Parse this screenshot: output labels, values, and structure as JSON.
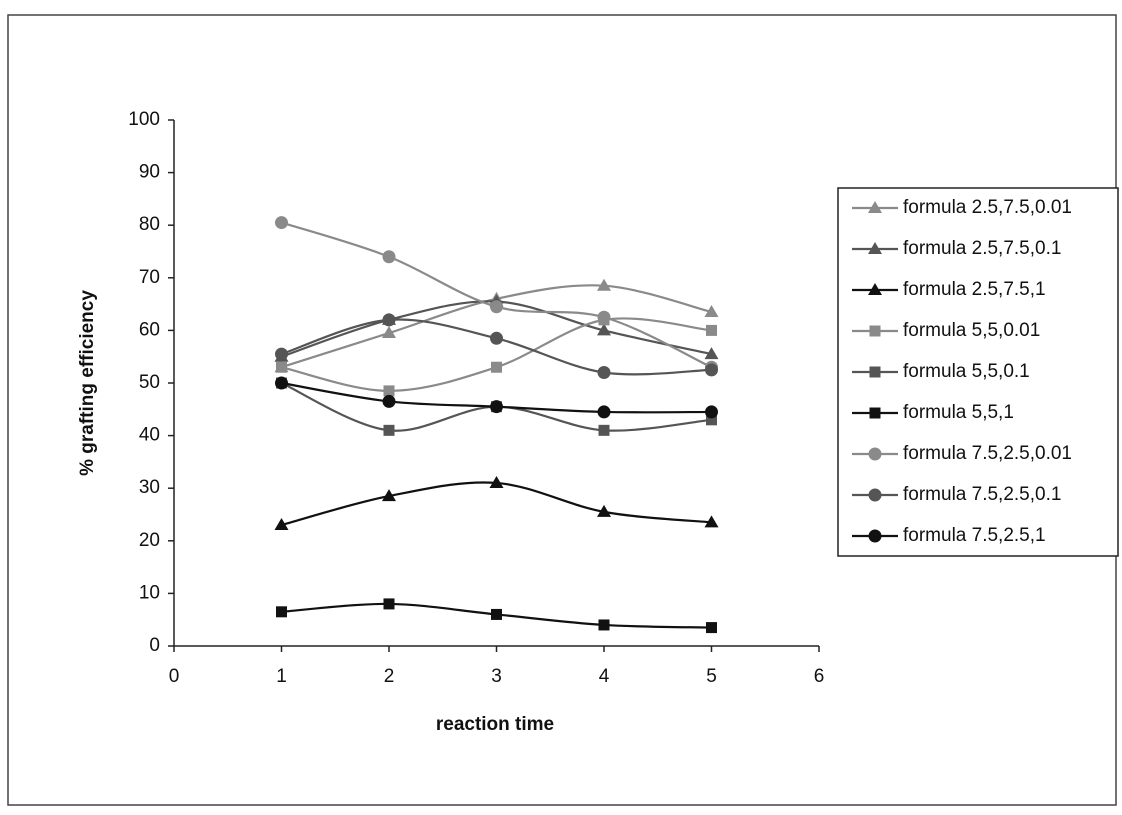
{
  "chart_data": {
    "type": "line",
    "xlabel": "reaction time",
    "ylabel": "% grafting efficiency",
    "x": [
      1,
      2,
      3,
      4,
      5
    ],
    "xlim": [
      0,
      6
    ],
    "xticks": [
      0,
      1,
      2,
      3,
      4,
      5,
      6
    ],
    "ylim": [
      0,
      100
    ],
    "yticks": [
      0,
      10,
      20,
      30,
      40,
      50,
      60,
      70,
      80,
      90,
      100
    ],
    "legend": "right",
    "series": [
      {
        "name": "formula 2.5,7.5,0.01",
        "color": "#8a8a8a",
        "marker": "triangle",
        "values": [
          53,
          59.5,
          66,
          68.5,
          63.5
        ]
      },
      {
        "name": "formula 2.5,7.5,0.1",
        "color": "#555555",
        "marker": "triangle",
        "values": [
          55,
          62,
          65.5,
          60,
          55.5
        ]
      },
      {
        "name": "formula 2.5,7.5,1",
        "color": "#111111",
        "marker": "triangle",
        "values": [
          23,
          28.5,
          31,
          25.5,
          23.5
        ]
      },
      {
        "name": "formula 5,5,0.01",
        "color": "#8a8a8a",
        "marker": "square",
        "values": [
          53,
          48.5,
          53,
          62,
          60
        ]
      },
      {
        "name": "formula 5,5,0.1",
        "color": "#555555",
        "marker": "square",
        "values": [
          50,
          41,
          45.5,
          41,
          43
        ]
      },
      {
        "name": "formula 5,5,1",
        "color": "#111111",
        "marker": "square",
        "values": [
          6.5,
          8,
          6,
          4,
          3.5
        ]
      },
      {
        "name": "formula 7.5,2.5,0.01",
        "color": "#8a8a8a",
        "marker": "circle",
        "values": [
          80.5,
          74,
          64.5,
          62.5,
          53
        ]
      },
      {
        "name": "formula 7.5,2.5,0.1",
        "color": "#555555",
        "marker": "circle",
        "values": [
          55.5,
          62,
          58.5,
          52,
          52.5
        ]
      },
      {
        "name": "formula 7.5,2.5,1",
        "color": "#111111",
        "marker": "circle",
        "values": [
          50,
          46.5,
          45.5,
          44.5,
          44.5
        ]
      }
    ]
  }
}
